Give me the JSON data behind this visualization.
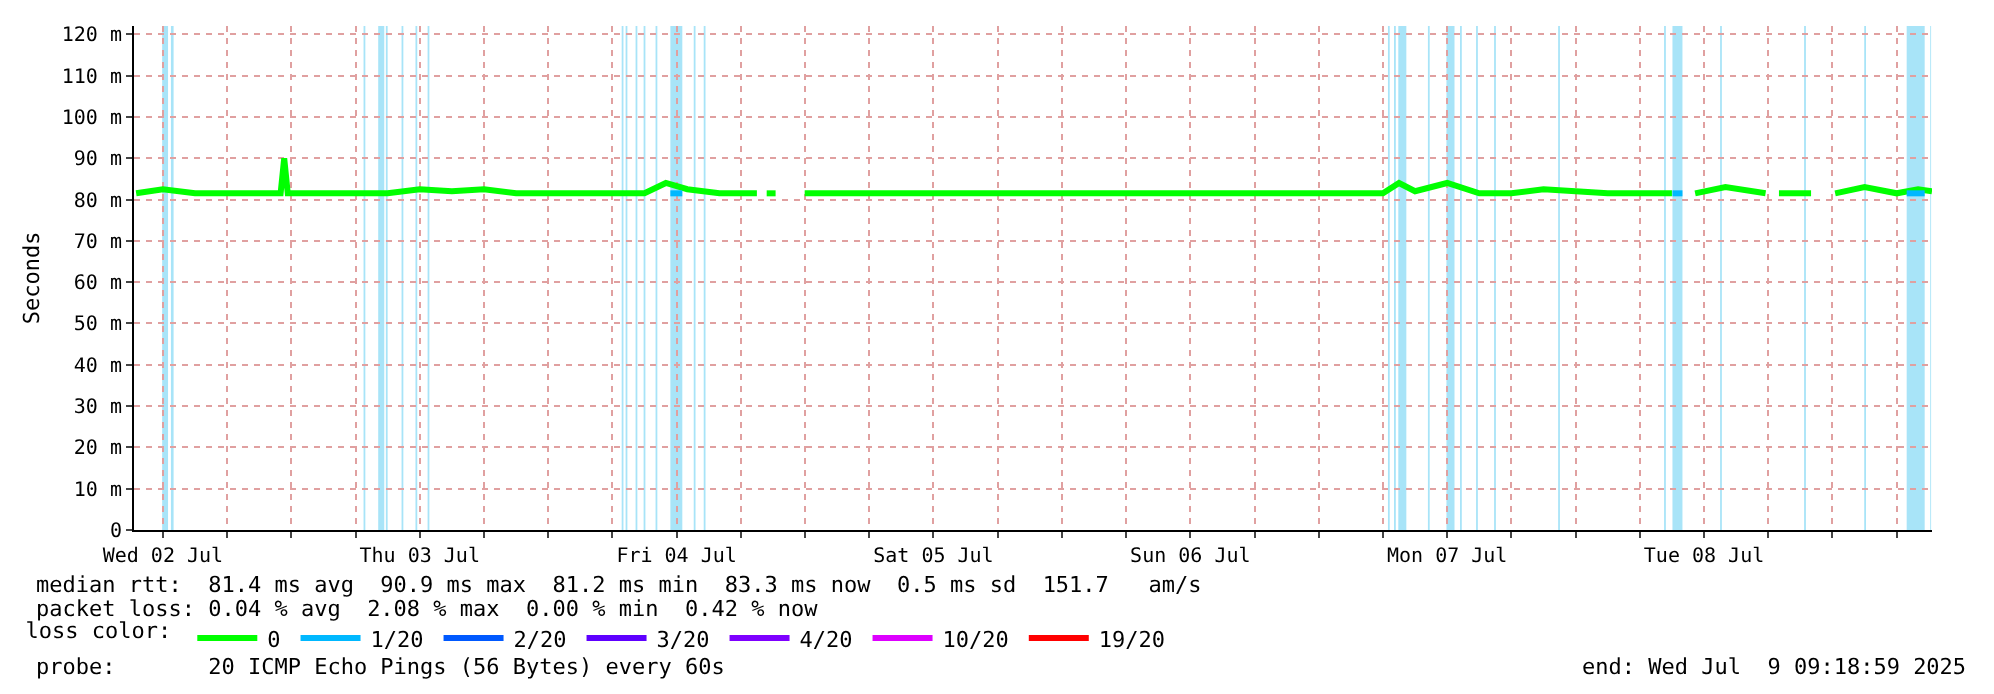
{
  "chart_data": {
    "type": "line",
    "ylabel": "Seconds",
    "legend_title": "loss color:",
    "legend": "bottom",
    "grid": true,
    "line_style": "solid",
    "ylim": [
      0,
      122
    ],
    "yticks": [
      {
        "value": 0,
        "label": "0"
      },
      {
        "value": 10,
        "label": "10 m"
      },
      {
        "value": 20,
        "label": "20 m"
      },
      {
        "value": 30,
        "label": "30 m"
      },
      {
        "value": 40,
        "label": "40 m"
      },
      {
        "value": 50,
        "label": "50 m"
      },
      {
        "value": 60,
        "label": "60 m"
      },
      {
        "value": 70,
        "label": "70 m"
      },
      {
        "value": 80,
        "label": "80 m"
      },
      {
        "value": 90,
        "label": "90 m"
      },
      {
        "value": 100,
        "label": "100 m"
      },
      {
        "value": 110,
        "label": "110 m"
      },
      {
        "value": 120,
        "label": "120 m"
      }
    ],
    "xlim": [
      "2025-07-02T09:18",
      "2025-07-09T09:18"
    ],
    "xticks": [
      {
        "value": "2025-07-02T12:00",
        "label": "Wed 02 Jul"
      },
      {
        "value": "2025-07-02T18:00",
        "label": null
      },
      {
        "value": "2025-07-03T00:00",
        "label": null
      },
      {
        "value": "2025-07-03T06:00",
        "label": null
      },
      {
        "value": "2025-07-03T12:00",
        "label": "Thu 03 Jul"
      },
      {
        "value": "2025-07-03T18:00",
        "label": null
      },
      {
        "value": "2025-07-04T00:00",
        "label": null
      },
      {
        "value": "2025-07-04T06:00",
        "label": null
      },
      {
        "value": "2025-07-04T12:00",
        "label": "Fri 04 Jul"
      },
      {
        "value": "2025-07-04T18:00",
        "label": null
      },
      {
        "value": "2025-07-05T00:00",
        "label": null
      },
      {
        "value": "2025-07-05T06:00",
        "label": null
      },
      {
        "value": "2025-07-05T12:00",
        "label": "Sat 05 Jul"
      },
      {
        "value": "2025-07-05T18:00",
        "label": null
      },
      {
        "value": "2025-07-06T00:00",
        "label": null
      },
      {
        "value": "2025-07-06T06:00",
        "label": null
      },
      {
        "value": "2025-07-06T12:00",
        "label": "Sun 06 Jul"
      },
      {
        "value": "2025-07-06T18:00",
        "label": null
      },
      {
        "value": "2025-07-07T00:00",
        "label": null
      },
      {
        "value": "2025-07-07T06:00",
        "label": null
      },
      {
        "value": "2025-07-07T12:00",
        "label": "Mon 07 Jul"
      },
      {
        "value": "2025-07-07T18:00",
        "label": null
      },
      {
        "value": "2025-07-08T00:00",
        "label": null
      },
      {
        "value": "2025-07-08T06:00",
        "label": null
      },
      {
        "value": "2025-07-08T12:00",
        "label": "Tue 08 Jul"
      },
      {
        "value": "2025-07-08T18:00",
        "label": null
      },
      {
        "value": "2025-07-09T00:00",
        "label": null
      },
      {
        "value": "2025-07-09T06:00",
        "label": null
      }
    ],
    "series": [
      {
        "name": "0",
        "color": "#00ff00",
        "x": [
          "2025-07-02T09:30",
          "2025-07-02T12:00",
          "2025-07-02T15:00",
          "2025-07-02T18:00",
          "2025-07-02T21:00",
          "2025-07-02T23:00",
          "2025-07-02T23:20",
          "2025-07-02T23:40",
          "2025-07-03T03:00",
          "2025-07-03T06:00",
          "2025-07-03T09:00",
          "2025-07-03T12:00",
          "2025-07-03T15:00",
          "2025-07-03T18:00",
          "2025-07-03T21:00",
          "2025-07-04T00:00",
          "2025-07-04T03:00",
          "2025-07-04T06:00",
          "2025-07-04T09:00",
          "2025-07-04T11:00",
          "2025-07-04T13:00",
          "2025-07-04T16:00",
          "2025-07-04T19:30",
          "2025-07-04T19:45",
          "2025-07-04T20:25",
          "2025-07-04T21:15",
          "2025-07-04T21:30",
          "2025-07-04T23:58",
          "2025-07-05T06:00",
          "2025-07-05T12:00",
          "2025-07-05T18:00",
          "2025-07-06T00:00",
          "2025-07-06T06:00",
          "2025-07-06T12:00",
          "2025-07-06T18:00",
          "2025-07-07T00:00",
          "2025-07-07T06:00",
          "2025-07-07T07:30",
          "2025-07-07T09:00",
          "2025-07-07T12:00",
          "2025-07-07T15:00",
          "2025-07-07T18:00",
          "2025-07-07T21:00",
          "2025-07-08T00:00",
          "2025-07-08T03:00",
          "2025-07-08T06:00",
          "2025-07-08T09:00",
          "2025-07-08T10:00",
          "2025-07-08T10:30",
          "2025-07-08T11:10",
          "2025-07-08T14:00",
          "2025-07-08T17:45",
          "2025-07-08T18:20",
          "2025-07-08T19:00",
          "2025-07-08T22:00",
          "2025-07-08T22:30",
          "2025-07-09T00:15",
          "2025-07-09T03:00",
          "2025-07-09T06:00",
          "2025-07-09T08:00",
          "2025-07-09T09:18"
        ],
        "values": [
          81.5,
          82.5,
          81.5,
          81.5,
          81.5,
          81.5,
          90,
          81.5,
          81.5,
          81.5,
          81.5,
          82.5,
          82,
          82.5,
          81.5,
          81.5,
          81.5,
          81.5,
          81.5,
          84,
          82.5,
          81.5,
          81.5,
          null,
          81.5,
          81.5,
          null,
          81.5,
          81.5,
          81.5,
          81.5,
          81.5,
          81.5,
          81.5,
          81.5,
          81.5,
          81.5,
          84,
          82,
          84,
          81.5,
          81.5,
          82.5,
          82,
          81.5,
          81.5,
          81.5,
          null,
          null,
          81.5,
          83,
          81.5,
          null,
          81.5,
          81.5,
          null,
          81.5,
          83,
          81.5,
          82.5,
          82
        ]
      },
      {
        "name": "1/20",
        "color": "#00b8ff",
        "x": [
          "2025-07-04T11:25",
          "2025-07-04T12:32",
          "2025-07-04T12:40",
          "2025-07-08T09:03",
          "2025-07-08T09:59",
          "2025-07-08T10:05",
          "2025-07-09T06:56",
          "2025-07-09T08:37"
        ],
        "values": [
          81.5,
          81.5,
          null,
          81.5,
          81.5,
          null,
          81.5,
          81.5
        ]
      },
      {
        "name": "2/20",
        "color": "#0059ff"
      },
      {
        "name": "3/20",
        "color": "#5e00ff"
      },
      {
        "name": "4/20",
        "color": "#7e00ff"
      },
      {
        "name": "10/20",
        "color": "#dd00ff"
      },
      {
        "name": "19/20",
        "color": "#ff0000"
      }
    ],
    "bands": [
      {
        "axis": "x",
        "from": "2025-07-02T11:56",
        "to": "2025-07-02T12:29",
        "color": "#a8e4f8"
      },
      {
        "axis": "x",
        "from": "2025-07-02T12:45",
        "to": "2025-07-02T13:00",
        "color": "#a8e4f8"
      },
      {
        "axis": "x",
        "from": "2025-07-03T06:45",
        "to": "2025-07-03T06:55",
        "color": "#a8e4f8"
      },
      {
        "axis": "x",
        "from": "2025-07-03T08:07",
        "to": "2025-07-03T08:41",
        "color": "#a8e4f8"
      },
      {
        "axis": "x",
        "from": "2025-07-03T08:50",
        "to": "2025-07-03T09:00",
        "color": "#a8e4f8"
      },
      {
        "axis": "x",
        "from": "2025-07-03T10:18",
        "to": "2025-07-03T10:28",
        "color": "#a8e4f8"
      },
      {
        "axis": "x",
        "from": "2025-07-03T11:36",
        "to": "2025-07-03T11:46",
        "color": "#a8e4f8"
      },
      {
        "axis": "x",
        "from": "2025-07-03T12:44",
        "to": "2025-07-03T12:54",
        "color": "#a8e4f8"
      },
      {
        "axis": "x",
        "from": "2025-07-04T06:52",
        "to": "2025-07-04T07:02",
        "color": "#a8e4f8"
      },
      {
        "axis": "x",
        "from": "2025-07-04T07:14",
        "to": "2025-07-04T07:24",
        "color": "#a8e4f8"
      },
      {
        "axis": "x",
        "from": "2025-07-04T08:10",
        "to": "2025-07-04T08:20",
        "color": "#a8e4f8"
      },
      {
        "axis": "x",
        "from": "2025-07-04T08:55",
        "to": "2025-07-04T09:05",
        "color": "#a8e4f8"
      },
      {
        "axis": "x",
        "from": "2025-07-04T10:02",
        "to": "2025-07-04T10:12",
        "color": "#a8e4f8"
      },
      {
        "axis": "x",
        "from": "2025-07-04T11:25",
        "to": "2025-07-04T12:32",
        "color": "#a8e4f8"
      },
      {
        "axis": "x",
        "from": "2025-07-04T13:36",
        "to": "2025-07-04T13:46",
        "color": "#a8e4f8"
      },
      {
        "axis": "x",
        "from": "2025-07-04T14:32",
        "to": "2025-07-04T14:42",
        "color": "#a8e4f8"
      },
      {
        "axis": "x",
        "from": "2025-07-07T06:28",
        "to": "2025-07-07T06:38",
        "color": "#a8e4f8"
      },
      {
        "axis": "x",
        "from": "2025-07-07T07:02",
        "to": "2025-07-07T07:12",
        "color": "#a8e4f8"
      },
      {
        "axis": "x",
        "from": "2025-07-07T07:26",
        "to": "2025-07-07T08:11",
        "color": "#a8e4f8"
      },
      {
        "axis": "x",
        "from": "2025-07-07T10:12",
        "to": "2025-07-07T10:22",
        "color": "#a8e4f8"
      },
      {
        "axis": "x",
        "from": "2025-07-07T11:56",
        "to": "2025-07-07T12:41",
        "color": "#a8e4f8"
      },
      {
        "axis": "x",
        "from": "2025-07-07T13:12",
        "to": "2025-07-07T13:22",
        "color": "#a8e4f8"
      },
      {
        "axis": "x",
        "from": "2025-07-07T14:42",
        "to": "2025-07-07T14:52",
        "color": "#a8e4f8"
      },
      {
        "axis": "x",
        "from": "2025-07-07T16:23",
        "to": "2025-07-07T16:33",
        "color": "#a8e4f8"
      },
      {
        "axis": "x",
        "from": "2025-07-07T22:22",
        "to": "2025-07-07T22:32",
        "color": "#a8e4f8"
      },
      {
        "axis": "x",
        "from": "2025-07-08T08:16",
        "to": "2025-07-08T08:26",
        "color": "#a8e4f8"
      },
      {
        "axis": "x",
        "from": "2025-07-08T09:03",
        "to": "2025-07-08T09:59",
        "color": "#a8e4f8"
      },
      {
        "axis": "x",
        "from": "2025-07-08T13:30",
        "to": "2025-07-08T13:40",
        "color": "#a8e4f8"
      },
      {
        "axis": "x",
        "from": "2025-07-08T21:21",
        "to": "2025-07-08T21:31",
        "color": "#a8e4f8"
      },
      {
        "axis": "x",
        "from": "2025-07-09T02:58",
        "to": "2025-07-09T03:08",
        "color": "#a8e4f8"
      },
      {
        "axis": "x",
        "from": "2025-07-09T06:56",
        "to": "2025-07-09T08:37",
        "color": "#a8e4f8"
      },
      {
        "axis": "x",
        "from": "2025-07-09T09:08",
        "to": "2025-07-09T09:13",
        "color": "#a8e4f8"
      }
    ],
    "annotations": [
      "median rtt:  81.4 ms avg  90.9 ms max  81.2 ms min  83.3 ms now  0.5 ms sd  151.7   am/s",
      "packet loss: 0.04 % avg  2.08 % max  0.00 % min  0.42 % now",
      "probe:       20 ICMP Echo Pings (56 Bytes) every 60s",
      "end: Wed Jul  9 09:18:59 2025"
    ]
  }
}
